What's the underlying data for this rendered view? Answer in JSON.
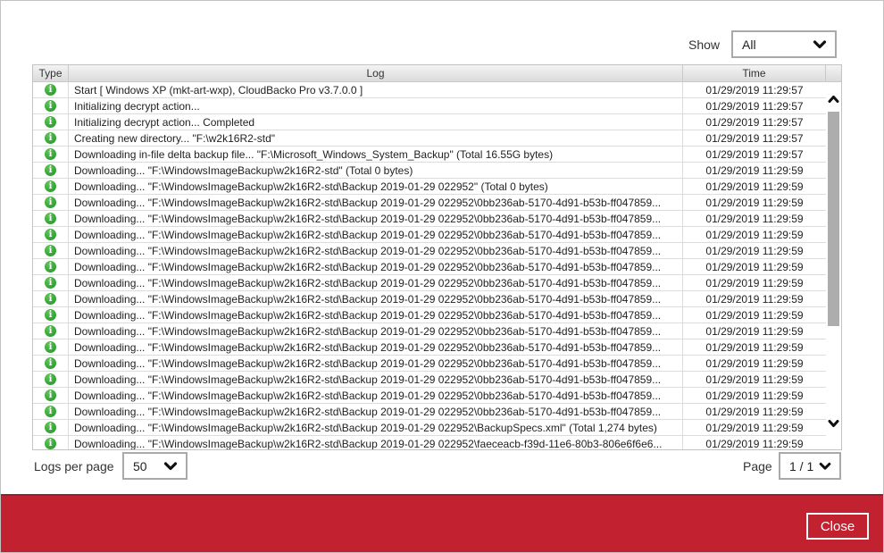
{
  "filter": {
    "label": "Show",
    "value": "All"
  },
  "table": {
    "headers": {
      "type": "Type",
      "log": "Log",
      "time": "Time"
    },
    "rows": [
      {
        "type": "info",
        "log": "Start [ Windows XP (mkt-art-wxp), CloudBacko Pro v3.7.0.0 ]",
        "time": "01/29/2019 11:29:57"
      },
      {
        "type": "info",
        "log": "Initializing decrypt action...",
        "time": "01/29/2019 11:29:57"
      },
      {
        "type": "info",
        "log": "Initializing decrypt action... Completed",
        "time": "01/29/2019 11:29:57"
      },
      {
        "type": "info",
        "log": "Creating new directory... \"F:\\w2k16R2-std\"",
        "time": "01/29/2019 11:29:57"
      },
      {
        "type": "info",
        "log": "Downloading in-file delta backup file... \"F:\\Microsoft_Windows_System_Backup\" (Total 16.55G bytes)",
        "time": "01/29/2019 11:29:57"
      },
      {
        "type": "info",
        "log": "Downloading... \"F:\\WindowsImageBackup\\w2k16R2-std\" (Total 0 bytes)",
        "time": "01/29/2019 11:29:59"
      },
      {
        "type": "info",
        "log": "Downloading... \"F:\\WindowsImageBackup\\w2k16R2-std\\Backup 2019-01-29 022952\" (Total 0 bytes)",
        "time": "01/29/2019 11:29:59"
      },
      {
        "type": "info",
        "log": "Downloading... \"F:\\WindowsImageBackup\\w2k16R2-std\\Backup 2019-01-29 022952\\0bb236ab-5170-4d91-b53b-ff047859...",
        "time": "01/29/2019 11:29:59"
      },
      {
        "type": "info",
        "log": "Downloading... \"F:\\WindowsImageBackup\\w2k16R2-std\\Backup 2019-01-29 022952\\0bb236ab-5170-4d91-b53b-ff047859...",
        "time": "01/29/2019 11:29:59"
      },
      {
        "type": "info",
        "log": "Downloading... \"F:\\WindowsImageBackup\\w2k16R2-std\\Backup 2019-01-29 022952\\0bb236ab-5170-4d91-b53b-ff047859...",
        "time": "01/29/2019 11:29:59"
      },
      {
        "type": "info",
        "log": "Downloading... \"F:\\WindowsImageBackup\\w2k16R2-std\\Backup 2019-01-29 022952\\0bb236ab-5170-4d91-b53b-ff047859...",
        "time": "01/29/2019 11:29:59"
      },
      {
        "type": "info",
        "log": "Downloading... \"F:\\WindowsImageBackup\\w2k16R2-std\\Backup 2019-01-29 022952\\0bb236ab-5170-4d91-b53b-ff047859...",
        "time": "01/29/2019 11:29:59"
      },
      {
        "type": "info",
        "log": "Downloading... \"F:\\WindowsImageBackup\\w2k16R2-std\\Backup 2019-01-29 022952\\0bb236ab-5170-4d91-b53b-ff047859...",
        "time": "01/29/2019 11:29:59"
      },
      {
        "type": "info",
        "log": "Downloading... \"F:\\WindowsImageBackup\\w2k16R2-std\\Backup 2019-01-29 022952\\0bb236ab-5170-4d91-b53b-ff047859...",
        "time": "01/29/2019 11:29:59"
      },
      {
        "type": "info",
        "log": "Downloading... \"F:\\WindowsImageBackup\\w2k16R2-std\\Backup 2019-01-29 022952\\0bb236ab-5170-4d91-b53b-ff047859...",
        "time": "01/29/2019 11:29:59"
      },
      {
        "type": "info",
        "log": "Downloading... \"F:\\WindowsImageBackup\\w2k16R2-std\\Backup 2019-01-29 022952\\0bb236ab-5170-4d91-b53b-ff047859...",
        "time": "01/29/2019 11:29:59"
      },
      {
        "type": "info",
        "log": "Downloading... \"F:\\WindowsImageBackup\\w2k16R2-std\\Backup 2019-01-29 022952\\0bb236ab-5170-4d91-b53b-ff047859...",
        "time": "01/29/2019 11:29:59"
      },
      {
        "type": "info",
        "log": "Downloading... \"F:\\WindowsImageBackup\\w2k16R2-std\\Backup 2019-01-29 022952\\0bb236ab-5170-4d91-b53b-ff047859...",
        "time": "01/29/2019 11:29:59"
      },
      {
        "type": "info",
        "log": "Downloading... \"F:\\WindowsImageBackup\\w2k16R2-std\\Backup 2019-01-29 022952\\0bb236ab-5170-4d91-b53b-ff047859...",
        "time": "01/29/2019 11:29:59"
      },
      {
        "type": "info",
        "log": "Downloading... \"F:\\WindowsImageBackup\\w2k16R2-std\\Backup 2019-01-29 022952\\0bb236ab-5170-4d91-b53b-ff047859...",
        "time": "01/29/2019 11:29:59"
      },
      {
        "type": "info",
        "log": "Downloading... \"F:\\WindowsImageBackup\\w2k16R2-std\\Backup 2019-01-29 022952\\0bb236ab-5170-4d91-b53b-ff047859...",
        "time": "01/29/2019 11:29:59"
      },
      {
        "type": "info",
        "log": "Downloading... \"F:\\WindowsImageBackup\\w2k16R2-std\\Backup 2019-01-29 022952\\BackupSpecs.xml\" (Total 1,274 bytes)",
        "time": "01/29/2019 11:29:59"
      },
      {
        "type": "info",
        "log": "Downloading... \"F:\\WindowsImageBackup\\w2k16R2-std\\Backup 2019-01-29 022952\\faeceacb-f39d-11e6-80b3-806e6f6e6...",
        "time": "01/29/2019 11:29:59"
      }
    ]
  },
  "pagination": {
    "logs_per_page_label": "Logs per page",
    "logs_per_page_value": "50",
    "page_label": "Page",
    "page_value": "1 / 1"
  },
  "footer": {
    "close_label": "Close"
  },
  "colors": {
    "accent_red": "#c2212f",
    "info_green": "#3fa83f"
  }
}
